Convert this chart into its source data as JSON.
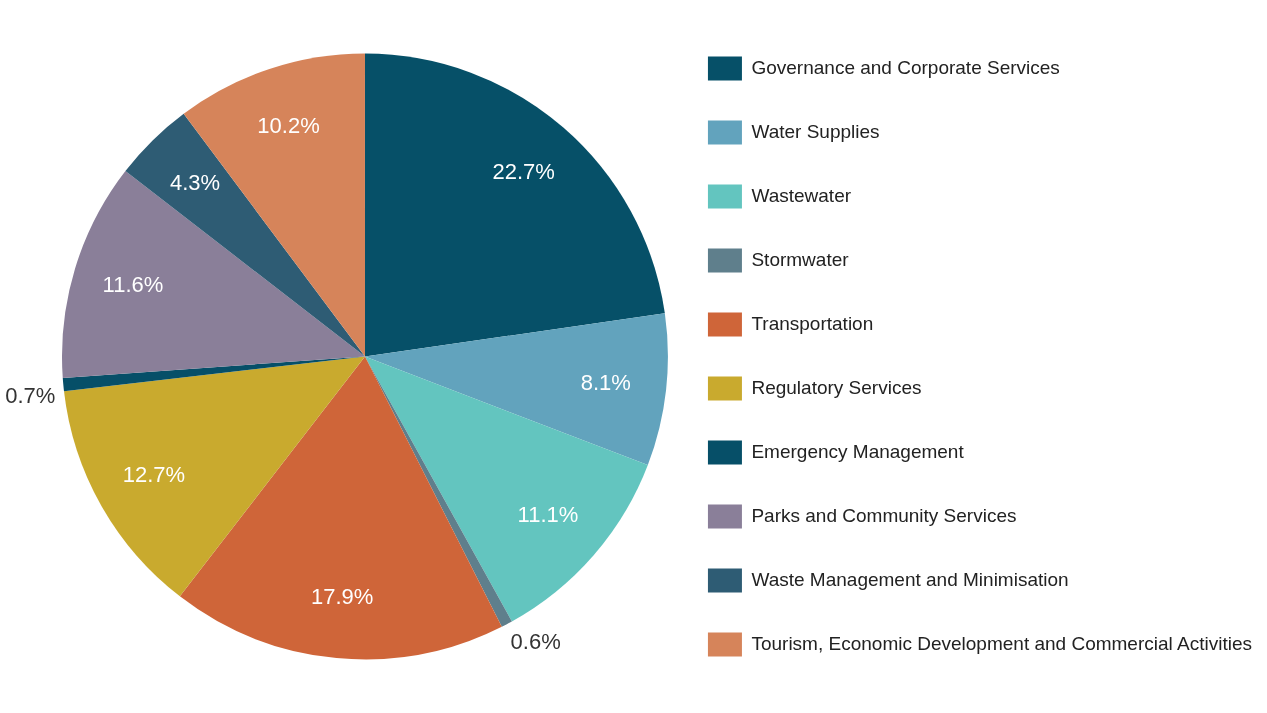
{
  "chart_data": {
    "type": "pie",
    "legend": "right",
    "categories": [
      "Governance and Corporate Services",
      "Water Supplies",
      "Wastewater",
      "Stormwater",
      "Transportation",
      "Regulatory Services",
      "Emergency Management",
      "Parks and Community Services",
      "Waste Management and Minimisation",
      "Tourism, Economic Development and Commercial Activities"
    ],
    "values": [
      22.7,
      8.1,
      11.1,
      0.6,
      17.9,
      12.7,
      0.7,
      11.6,
      4.3,
      10.2
    ],
    "value_labels": [
      "22.7%",
      "8.1%",
      "11.1%",
      "0.6%",
      "17.9%",
      "12.7%",
      "0.7%",
      "11.6%",
      "4.3%",
      "10.2%"
    ],
    "colors": [
      "#065068",
      "#62a3bd",
      "#63c5bf",
      "#5f7f8c",
      "#cf6539",
      "#c9aa2e",
      "#064f68",
      "#8a7f99",
      "#2e5c74",
      "#d6845a"
    ]
  }
}
